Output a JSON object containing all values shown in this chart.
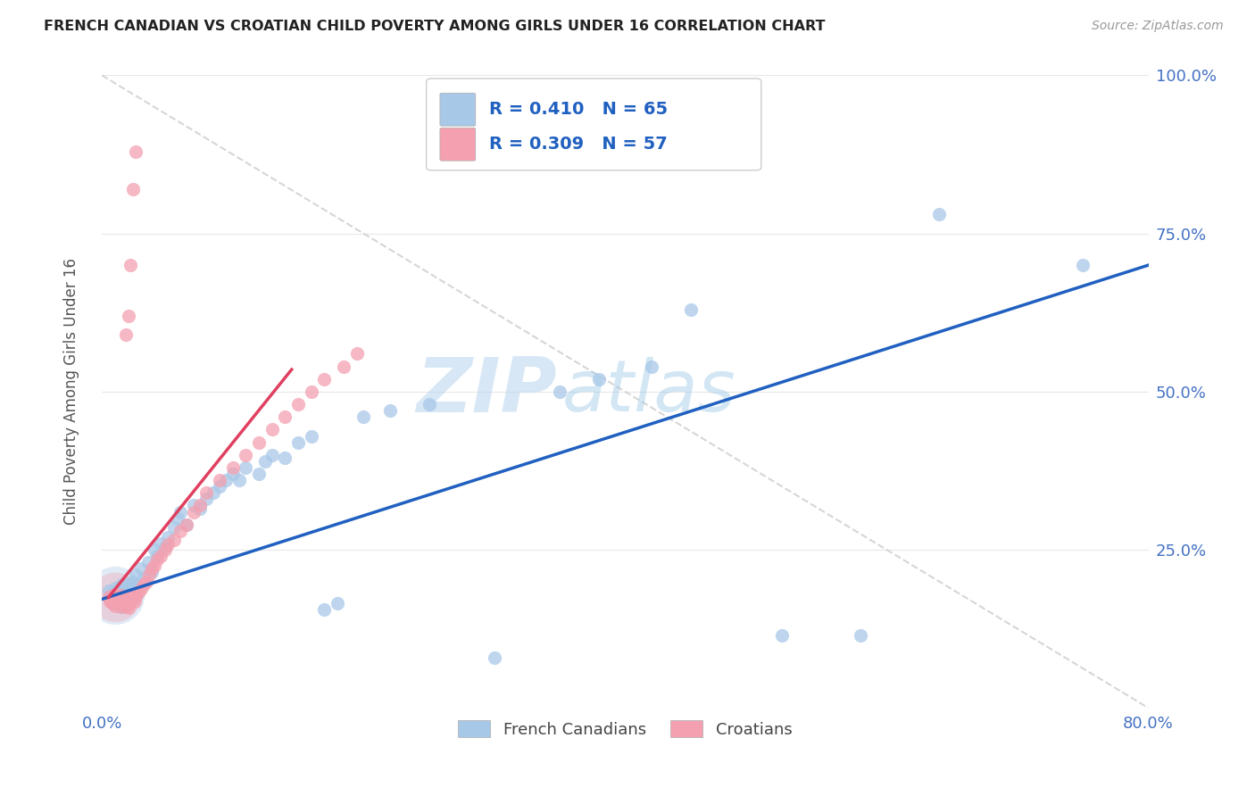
{
  "title": "FRENCH CANADIAN VS CROATIAN CHILD POVERTY AMONG GIRLS UNDER 16 CORRELATION CHART",
  "source": "Source: ZipAtlas.com",
  "ylabel": "Child Poverty Among Girls Under 16",
  "xlim": [
    0.0,
    0.8
  ],
  "ylim": [
    0.0,
    1.0
  ],
  "watermark_line1": "ZIP",
  "watermark_line2": "atlas",
  "french_canadian_color": "#a8c8e8",
  "croatian_color": "#f4a0b0",
  "french_canadian_line_color": "#2060c0",
  "croatian_line_color": "#e04060",
  "diagonal_color": "#cccccc",
  "R_french": 0.41,
  "N_french": 65,
  "R_croatian": 0.309,
  "N_croatian": 57,
  "legend_label_french": "French Canadians",
  "legend_label_croatian": "Croatians",
  "background_color": "#ffffff",
  "grid_color": "#e8e8e8",
  "title_color": "#222222",
  "title_fontsize": 11.5,
  "axis_label_color": "#555555",
  "tick_label_color": "#4472c4",
  "fc_x": [
    0.005,
    0.007,
    0.008,
    0.009,
    0.01,
    0.01,
    0.012,
    0.013,
    0.014,
    0.015,
    0.015,
    0.016,
    0.017,
    0.018,
    0.019,
    0.02,
    0.02,
    0.021,
    0.022,
    0.023,
    0.025,
    0.026,
    0.028,
    0.03,
    0.032,
    0.035,
    0.038,
    0.04,
    0.042,
    0.045,
    0.048,
    0.05,
    0.055,
    0.058,
    0.06,
    0.065,
    0.07,
    0.075,
    0.08,
    0.085,
    0.09,
    0.095,
    0.1,
    0.105,
    0.11,
    0.12,
    0.125,
    0.13,
    0.14,
    0.15,
    0.16,
    0.17,
    0.18,
    0.2,
    0.22,
    0.25,
    0.3,
    0.35,
    0.38,
    0.42,
    0.45,
    0.52,
    0.58,
    0.64,
    0.75
  ],
  "fc_y": [
    0.185,
    0.175,
    0.18,
    0.165,
    0.175,
    0.19,
    0.17,
    0.18,
    0.175,
    0.16,
    0.195,
    0.185,
    0.178,
    0.172,
    0.182,
    0.17,
    0.195,
    0.188,
    0.175,
    0.2,
    0.195,
    0.21,
    0.185,
    0.22,
    0.205,
    0.23,
    0.215,
    0.25,
    0.24,
    0.26,
    0.255,
    0.27,
    0.285,
    0.3,
    0.31,
    0.29,
    0.32,
    0.315,
    0.33,
    0.34,
    0.35,
    0.36,
    0.37,
    0.36,
    0.38,
    0.37,
    0.39,
    0.4,
    0.395,
    0.42,
    0.43,
    0.155,
    0.165,
    0.46,
    0.47,
    0.48,
    0.08,
    0.5,
    0.52,
    0.54,
    0.63,
    0.115,
    0.115,
    0.78,
    0.7
  ],
  "cr_x": [
    0.005,
    0.006,
    0.007,
    0.008,
    0.009,
    0.01,
    0.01,
    0.011,
    0.012,
    0.013,
    0.014,
    0.015,
    0.015,
    0.016,
    0.017,
    0.018,
    0.019,
    0.02,
    0.02,
    0.021,
    0.022,
    0.023,
    0.025,
    0.026,
    0.028,
    0.03,
    0.032,
    0.034,
    0.036,
    0.038,
    0.04,
    0.042,
    0.045,
    0.048,
    0.05,
    0.055,
    0.06,
    0.065,
    0.07,
    0.075,
    0.08,
    0.09,
    0.1,
    0.11,
    0.12,
    0.13,
    0.14,
    0.15,
    0.16,
    0.17,
    0.185,
    0.195,
    0.018,
    0.02,
    0.022,
    0.024,
    0.026
  ],
  "cr_y": [
    0.175,
    0.168,
    0.172,
    0.165,
    0.178,
    0.162,
    0.18,
    0.17,
    0.175,
    0.165,
    0.172,
    0.16,
    0.178,
    0.168,
    0.175,
    0.162,
    0.17,
    0.158,
    0.175,
    0.165,
    0.172,
    0.178,
    0.168,
    0.175,
    0.182,
    0.188,
    0.195,
    0.2,
    0.21,
    0.22,
    0.225,
    0.235,
    0.24,
    0.25,
    0.258,
    0.265,
    0.28,
    0.29,
    0.31,
    0.32,
    0.34,
    0.36,
    0.38,
    0.4,
    0.42,
    0.44,
    0.46,
    0.48,
    0.5,
    0.52,
    0.54,
    0.56,
    0.59,
    0.62,
    0.7,
    0.82,
    0.88
  ],
  "fc_line_x0": 0.0,
  "fc_line_y0": 0.172,
  "fc_line_x1": 0.8,
  "fc_line_y1": 0.7,
  "cr_line_x0": 0.005,
  "cr_line_y0": 0.175,
  "cr_line_x1": 0.145,
  "cr_line_y1": 0.535
}
